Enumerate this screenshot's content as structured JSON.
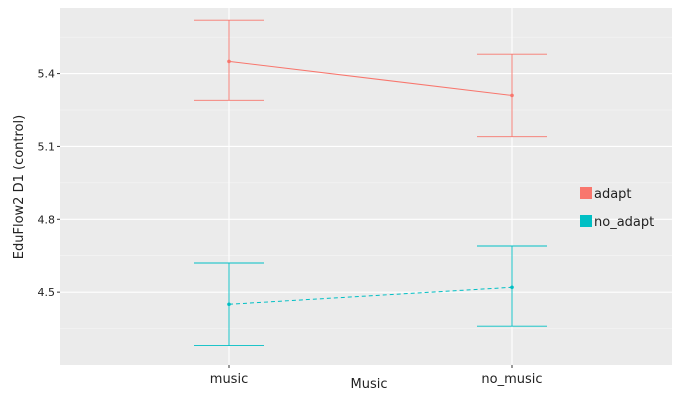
{
  "chart_data": {
    "type": "line",
    "title": "",
    "xlabel": "Music",
    "ylabel": "EduFlow2 D1 (control)",
    "categories": [
      "music",
      "no_music"
    ],
    "y_ticks": [
      4.5,
      4.8,
      5.1,
      5.4
    ],
    "y_tick_labels": [
      "4.5",
      "4.8",
      "5.1",
      "5.4"
    ],
    "ylim": [
      4.27,
      5.62
    ],
    "grid": true,
    "legend_position": "right",
    "series": [
      {
        "name": "adapt",
        "color": "#F8766D",
        "line_style": "solid",
        "values": [
          5.45,
          5.31
        ],
        "lower": [
          5.29,
          5.14
        ],
        "upper": [
          5.62,
          5.48
        ]
      },
      {
        "name": "no_adapt",
        "color": "#00BFC4",
        "line_style": "dashed",
        "values": [
          4.45,
          4.52
        ],
        "lower": [
          4.28,
          4.36
        ],
        "upper": [
          4.62,
          4.69
        ]
      }
    ]
  }
}
